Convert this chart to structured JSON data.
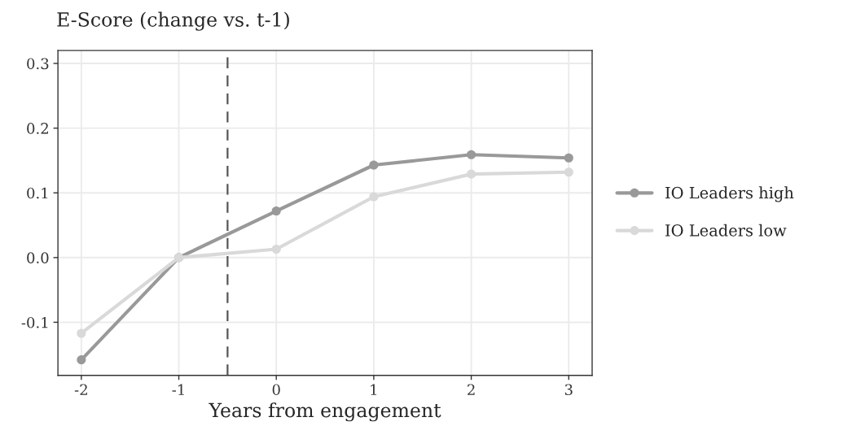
{
  "chart_data": {
    "type": "line",
    "title": "E-Score (change vs. t-1)",
    "xlabel": "Years from engagement",
    "x": [
      -2,
      -1,
      0,
      1,
      2,
      3
    ],
    "series": [
      {
        "name": "IO Leaders high",
        "color": "#999999",
        "values": [
          -0.158,
          0,
          0.072,
          0.143,
          0.159,
          0.154
        ]
      },
      {
        "name": "IO Leaders low",
        "color": "#d9d9d9",
        "values": [
          -0.117,
          0,
          0.013,
          0.094,
          0.129,
          0.132
        ]
      }
    ],
    "xlim": [
      -2.24,
      3.24
    ],
    "xticks": [
      -2,
      -1,
      0,
      1,
      2,
      3
    ],
    "ylim": [
      -0.182,
      0.32
    ],
    "yticks": [
      {
        "value": -0.1,
        "label": "-0.1"
      },
      {
        "value": 0.0,
        "label": "0.0"
      },
      {
        "value": 0.1,
        "label": "0.1"
      },
      {
        "value": 0.2,
        "label": "0.2"
      },
      {
        "value": 0.3,
        "label": "0.3"
      }
    ],
    "ref_lines": [
      {
        "axis": "x",
        "value": -0.5,
        "color": "#555555",
        "line_style": "dashed"
      }
    ],
    "grid": true,
    "legend": "right",
    "marker": "circle",
    "line_style": "solid"
  }
}
